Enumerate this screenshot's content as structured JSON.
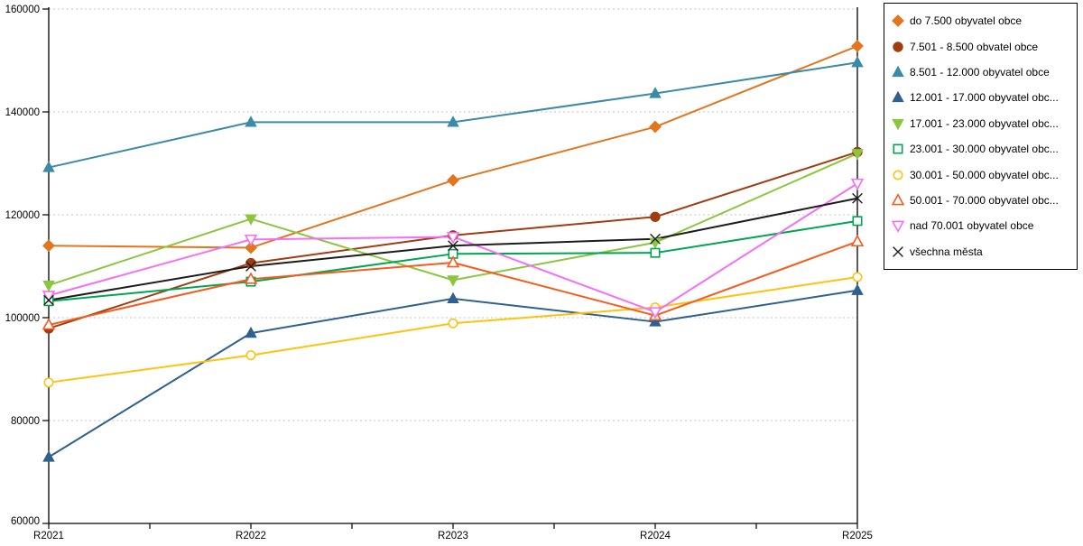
{
  "chart_data": {
    "type": "line",
    "title": "",
    "xlabel": "",
    "ylabel": "",
    "categories": [
      "R2021",
      "R2022",
      "R2023",
      "R2024",
      "R2025"
    ],
    "ylim": [
      60000,
      160000
    ],
    "ytick_labels": [
      "60000",
      "80000",
      "100000",
      "120000",
      "140000",
      "160000"
    ],
    "ytick_values": [
      60000,
      80000,
      100000,
      120000,
      140000,
      160000
    ],
    "grid": "horizontal-dotted",
    "legend_position": "outside-top-right",
    "gridline_color": "#c6c6c6",
    "axis_color": "#000000",
    "series": [
      {
        "name": "do 7.500 obyvatel obce",
        "legend_label": "do 7.500 obyvatel obce",
        "color": "#E2751D",
        "marker": "diamond",
        "marker_fill": "filled",
        "values": [
          114000,
          113600,
          126700,
          137100,
          152800
        ]
      },
      {
        "name": "7.501 - 8.500 obvatel obce",
        "legend_label": "7.501 - 8.500 obvatel obce",
        "color": "#A03D10",
        "marker": "circle",
        "marker_fill": "filled",
        "values": [
          97900,
          110600,
          116000,
          119600,
          132200
        ]
      },
      {
        "name": "8.501 - 12.000 obyvatel obce",
        "legend_label": "8.501 - 12.000 obyvatel obce",
        "color": "#3B8AA6",
        "marker": "triangle-up",
        "marker_fill": "filled",
        "values": [
          129200,
          138000,
          138000,
          143600,
          149600
        ]
      },
      {
        "name": "12.001 - 17.000 obyvatel obce",
        "legend_label": "12.001 - 17.000 obyvatel obc...",
        "color": "#2F608F",
        "marker": "triangle-up",
        "marker_fill": "filled",
        "values": [
          72900,
          97000,
          103700,
          99200,
          105300
        ]
      },
      {
        "name": "17.001 - 23.000 obyvatel obce",
        "legend_label": "17.001 - 23.000 obyvatel obc...",
        "color": "#8CC63F",
        "marker": "triangle-down",
        "marker_fill": "filled",
        "values": [
          106300,
          119200,
          107300,
          114600,
          131900
        ]
      },
      {
        "name": "23.001 - 30.000 obyvatel obce",
        "legend_label": "23.001 - 30.000 obyvatel obc...",
        "color": "#00A551",
        "marker": "square",
        "marker_fill": "open",
        "values": [
          103200,
          107000,
          112400,
          112600,
          118800
        ]
      },
      {
        "name": "30.001 - 50.000 obyvatel obce",
        "legend_label": "30.001 - 50.000 obyvatel obc...",
        "color": "#FFC20E",
        "marker": "circle",
        "marker_fill": "open",
        "values": [
          87400,
          92700,
          98900,
          102000,
          107900
        ]
      },
      {
        "name": "50.001 - 70.000 obyvatel obce",
        "legend_label": "50.001 - 70.000 obyvatel obc...",
        "color": "#F55B1D",
        "marker": "triangle-up",
        "marker_fill": "open",
        "values": [
          98600,
          107500,
          110700,
          100400,
          114800
        ]
      },
      {
        "name": "nad 70.001 obyvatel obce",
        "legend_label": "nad 70.001 obyvatel obce",
        "color": "#F56EF5",
        "marker": "triangle-down",
        "marker_fill": "open",
        "values": [
          104300,
          115200,
          115700,
          101100,
          126100
        ]
      },
      {
        "name": "všechna města",
        "legend_label": "všechna města",
        "color": "#1C1C1C",
        "marker": "x",
        "marker_fill": "line",
        "values": [
          103400,
          110000,
          114000,
          115300,
          123200
        ]
      }
    ]
  }
}
